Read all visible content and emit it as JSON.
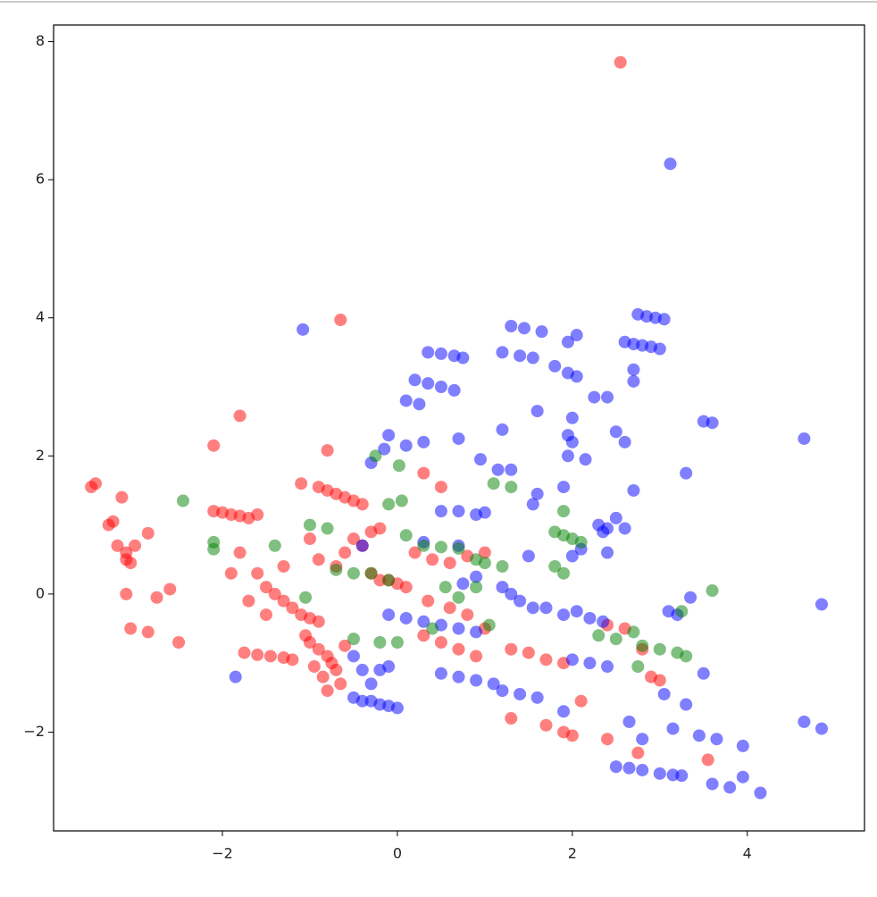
{
  "chart_data": {
    "type": "scatter",
    "alpha": 0.5,
    "xlim": [
      -3.93,
      5.34
    ],
    "ylim": [
      -3.43,
      8.24
    ],
    "xticks": [
      {
        "value": -2,
        "label": "−2"
      },
      0,
      2,
      4
    ],
    "yticks": [
      {
        "value": -2,
        "label": "−2"
      },
      0,
      2,
      4,
      6,
      8
    ],
    "series": [
      {
        "color": "#ff0000",
        "x": [
          -3.5,
          -3.45,
          -3.3,
          -3.25,
          -3.2,
          -3.1,
          -3.1,
          -3.05,
          -3.0,
          -3.15,
          -3.1,
          -3.05,
          -2.85,
          -2.85,
          -2.75,
          -2.6,
          -2.5,
          2.55,
          -0.65,
          -1.8,
          -2.1,
          -0.8,
          -2.1,
          -2.0,
          -1.9,
          -1.8,
          -1.7,
          -1.6,
          -1.1,
          -0.9,
          -0.8,
          -0.7,
          -0.6,
          -0.5,
          -0.4,
          -1.8,
          -1.6,
          -1.5,
          -1.4,
          -1.3,
          -1.2,
          -1.1,
          -1.0,
          -0.9,
          -1.5,
          -1.7,
          -1.9,
          -1.3,
          -1.0,
          -0.9,
          -0.7,
          -0.6,
          -0.5,
          -0.4,
          -0.3,
          -0.2,
          -0.1,
          0,
          0.1,
          -0.3,
          -1.75,
          -1.6,
          -1.45,
          -1.3,
          -1.2,
          -1.0,
          -0.9,
          -0.8,
          -0.75,
          -0.7,
          -0.85,
          -0.95,
          -1.05,
          -0.6,
          -0.65,
          -0.8,
          0.3,
          0.5,
          0.7,
          0.9,
          0.35,
          0.6,
          0.8,
          1.0,
          1.3,
          1.5,
          1.7,
          1.9,
          0.2,
          0.4,
          0.6,
          0.8,
          1.0,
          1.3,
          1.7,
          1.9,
          2.0,
          2.4,
          2.1,
          2.4,
          2.6,
          2.8,
          2.9,
          3.0,
          2.75,
          3.55,
          0.3,
          0.5,
          -0.2
        ],
        "values": [
          1.55,
          1.6,
          1.0,
          1.05,
          0.7,
          0.5,
          0.6,
          0.45,
          0.7,
          1.4,
          0,
          -0.5,
          -0.55,
          0.88,
          -0.05,
          0.07,
          -0.7,
          7.7,
          3.97,
          2.58,
          2.15,
          2.08,
          1.2,
          1.18,
          1.15,
          1.13,
          1.1,
          1.15,
          1.6,
          1.55,
          1.5,
          1.45,
          1.4,
          1.35,
          1.3,
          0.6,
          0.3,
          0.1,
          0.0,
          -0.1,
          -0.2,
          -0.3,
          -0.35,
          -0.4,
          -0.3,
          -0.1,
          0.3,
          0.4,
          0.8,
          0.5,
          0.4,
          0.6,
          0.8,
          0.7,
          0.3,
          0.2,
          0.2,
          0.15,
          0.1,
          0.9,
          -0.85,
          -0.88,
          -0.9,
          -0.92,
          -0.95,
          -0.7,
          -0.8,
          -0.9,
          -1.0,
          -1.1,
          -1.2,
          -1.05,
          -0.6,
          -0.75,
          -1.3,
          -1.4,
          -0.6,
          -0.7,
          -0.8,
          -0.9,
          -0.1,
          -0.2,
          -0.3,
          -0.5,
          -0.8,
          -0.85,
          -0.95,
          -1.0,
          0.6,
          0.5,
          0.45,
          0.55,
          0.6,
          -1.8,
          -1.9,
          -2.0,
          -2.05,
          -2.1,
          -1.55,
          -0.45,
          -0.5,
          -0.8,
          -1.2,
          -1.25,
          -2.3,
          -2.4,
          1.75,
          1.55,
          0.95
        ]
      },
      {
        "color": "#0000ff",
        "x": [
          3.12,
          -1.08,
          2.75,
          2.85,
          2.95,
          3.05,
          2.6,
          2.7,
          2.8,
          2.9,
          3.0,
          1.3,
          1.45,
          1.65,
          1.95,
          2.05,
          0.35,
          0.5,
          0.65,
          0.75,
          1.2,
          1.4,
          1.55,
          1.8,
          1.95,
          2.05,
          0.2,
          0.35,
          0.5,
          0.65,
          0.1,
          0.25,
          2.7,
          2.7,
          1.6,
          2.0,
          2.25,
          2.4,
          1.95,
          2.0,
          1.95,
          1.2,
          0.7,
          0.3,
          0.1,
          -0.1,
          -0.3,
          -0.15,
          2.15,
          2.6,
          2.5,
          3.5,
          3.6,
          4.65,
          0.95,
          1.15,
          1.3,
          3.3,
          2.7,
          1.6,
          1.55,
          1.9,
          0.5,
          0.7,
          0.9,
          1.0,
          2.3,
          2.4,
          2.5,
          2.35,
          2.6,
          -0.4,
          0.3,
          0.7,
          1.5,
          2.0,
          2.1,
          2.4,
          1.2,
          1.3,
          1.4,
          1.55,
          1.7,
          1.9,
          2.05,
          2.2,
          2.35,
          -0.1,
          0.1,
          0.3,
          0.5,
          0.7,
          0.9,
          -0.5,
          -0.4,
          -0.3,
          -0.2,
          -0.1,
          -0.5,
          -0.4,
          -0.3,
          -0.2,
          -0.1,
          0,
          0.5,
          0.7,
          0.9,
          1.1,
          1.2,
          1.4,
          1.6,
          2.0,
          2.2,
          2.4,
          3.35,
          3.2,
          3.1,
          3.5,
          3.05,
          3.3,
          3.15,
          3.45,
          3.65,
          3.95,
          4.65,
          4.85,
          4.85,
          2.5,
          2.65,
          2.8,
          3.0,
          3.15,
          3.25,
          3.6,
          3.8,
          3.95,
          4.15,
          2.65,
          2.8,
          1.9,
          -1.85,
          0.75,
          0.9
        ],
        "values": [
          6.23,
          3.83,
          4.05,
          4.02,
          4.0,
          3.98,
          3.65,
          3.62,
          3.6,
          3.58,
          3.55,
          3.88,
          3.85,
          3.8,
          3.65,
          3.75,
          3.5,
          3.48,
          3.45,
          3.42,
          3.5,
          3.45,
          3.42,
          3.3,
          3.2,
          3.15,
          3.1,
          3.05,
          3.0,
          2.95,
          2.8,
          2.75,
          3.25,
          3.08,
          2.65,
          2.55,
          2.85,
          2.85,
          2.3,
          2.2,
          2.0,
          2.38,
          2.25,
          2.2,
          2.15,
          2.3,
          1.9,
          2.1,
          1.95,
          2.2,
          2.35,
          2.5,
          2.48,
          2.25,
          1.95,
          1.8,
          1.8,
          1.75,
          1.5,
          1.45,
          1.3,
          1.55,
          1.2,
          1.2,
          1.15,
          1.18,
          1.0,
          0.95,
          1.1,
          0.9,
          0.95,
          0.7,
          0.75,
          0.7,
          0.55,
          0.55,
          0.65,
          0.6,
          0.1,
          0.0,
          -0.1,
          -0.2,
          -0.2,
          -0.3,
          -0.25,
          -0.35,
          -0.4,
          -0.3,
          -0.35,
          -0.4,
          -0.45,
          -0.5,
          -0.55,
          -0.9,
          -1.1,
          -1.3,
          -1.1,
          -1.05,
          -1.5,
          -1.55,
          -1.55,
          -1.6,
          -1.62,
          -1.65,
          -1.15,
          -1.2,
          -1.25,
          -1.3,
          -1.4,
          -1.45,
          -1.5,
          -0.95,
          -1.0,
          -1.05,
          -0.05,
          -0.3,
          -0.25,
          -1.15,
          -1.45,
          -1.6,
          -1.95,
          -2.05,
          -2.1,
          -2.2,
          -1.85,
          -1.95,
          -0.15,
          -2.5,
          -2.52,
          -2.55,
          -2.6,
          -2.62,
          -2.63,
          -2.75,
          -2.8,
          -2.65,
          -2.88,
          -1.85,
          -2.1,
          -1.7,
          -1.2,
          0.15,
          0.25
        ]
      },
      {
        "color": "#008000",
        "x": [
          -2.45,
          -2.1,
          -2.1,
          0.02,
          -0.25,
          0.05,
          -0.1,
          1.1,
          1.3,
          1.9,
          0.3,
          0.5,
          0.7,
          0.9,
          1.0,
          1.2,
          1.8,
          1.9,
          2.0,
          2.1,
          1.8,
          1.9,
          -1.0,
          -0.8,
          -0.7,
          -0.5,
          -0.3,
          -0.1,
          0.55,
          0.7,
          0.9,
          -0.5,
          -0.2,
          0,
          0.1,
          2.3,
          2.5,
          2.7,
          2.8,
          3.0,
          3.2,
          3.3,
          2.75,
          3.25,
          3.6,
          -1.4,
          1.05,
          -1.05,
          0.4
        ],
        "values": [
          1.35,
          0.75,
          0.65,
          1.86,
          2.0,
          1.35,
          1.3,
          1.6,
          1.55,
          1.2,
          0.7,
          0.68,
          0.66,
          0.5,
          0.45,
          0.4,
          0.9,
          0.85,
          0.8,
          0.75,
          0.4,
          0.3,
          1.0,
          0.95,
          0.35,
          0.3,
          0.3,
          0.2,
          0.1,
          -0.05,
          0.1,
          -0.65,
          -0.7,
          -0.7,
          0.85,
          -0.6,
          -0.65,
          -0.55,
          -0.75,
          -0.8,
          -0.85,
          -0.9,
          -1.05,
          -0.25,
          0.05,
          0.7,
          -0.45,
          -0.05,
          -0.5
        ]
      }
    ]
  }
}
